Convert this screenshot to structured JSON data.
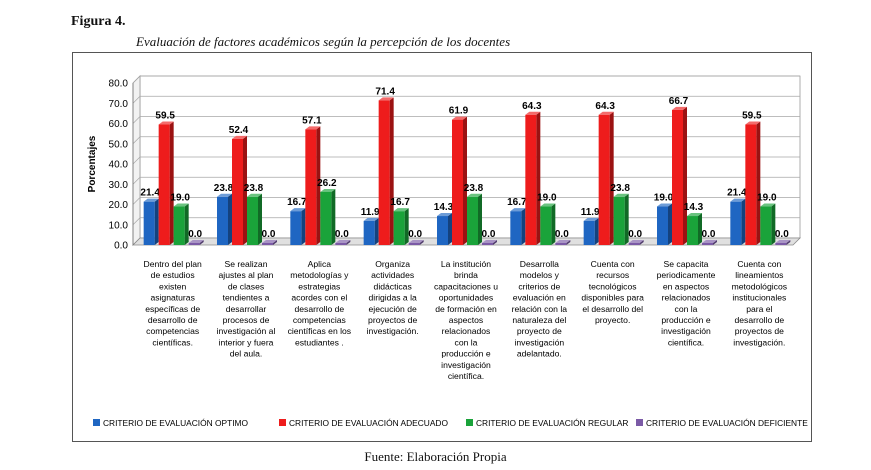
{
  "figure_label": "Figura 4.",
  "figure_title": "Evaluación de factores académicos según la percepción de los docentes",
  "source": "Fuente: Elaboración Propia",
  "chart_data": {
    "type": "bar",
    "ylabel": "Porcentajes",
    "ylim": [
      0,
      80
    ],
    "yticks": [
      "0.0",
      "10.0",
      "20.0",
      "30.0",
      "40.0",
      "50.0",
      "60.0",
      "70.0",
      "80.0"
    ],
    "grid": true,
    "legend_position": "bottom",
    "categories": [
      [
        "Dentro del plan",
        "de estudios",
        "existen",
        "asignaturas",
        "específicas de",
        "desarrollo de",
        "competencias",
        "científicas."
      ],
      [
        "Se realizan",
        "ajustes al plan",
        "de clases",
        "tendientes a",
        "desarrollar",
        "procesos de",
        "investigación al",
        "interior y fuera",
        "del aula."
      ],
      [
        "Aplica",
        "metodologías y",
        "estrategias",
        "acordes con el",
        "desarrollo de",
        "competencias",
        "científicas en los",
        "estudiantes ."
      ],
      [
        "Organiza",
        "actividades",
        "didácticas",
        "dirigidas a la",
        "ejecución de",
        "proyectos de",
        "investigación."
      ],
      [
        "La institución",
        "brinda",
        "capacitaciones u",
        "oportunidades",
        "de formación en",
        "aspectos",
        "relacionados",
        "con la",
        "producción e",
        "investigación",
        "científica."
      ],
      [
        "Desarrolla",
        "modelos y",
        "criterios de",
        "evaluación en",
        "relación con la",
        "naturaleza del",
        "proyecto de",
        "investigación",
        "adelantado."
      ],
      [
        "Cuenta con",
        "recursos",
        "tecnológicos",
        "disponibles para",
        "el desarrollo del",
        "proyecto."
      ],
      [
        "Se capacita",
        "periodicamente",
        "en aspectos",
        "relacionados",
        "con la",
        "producción e",
        "investigación",
        "científica."
      ],
      [
        "Cuenta con",
        "lineamientos",
        "metodológicos",
        "institucionales",
        "para el",
        "desarrollo de",
        "proyectos de",
        "investigación."
      ]
    ],
    "series": [
      {
        "name": "CRITERIO  DE  EVALUACIÓN OPTIMO",
        "color": "#1f66c2",
        "values": [
          21.4,
          23.8,
          16.7,
          11.9,
          14.3,
          16.7,
          11.9,
          19.0,
          21.4
        ],
        "labels": [
          "21.4",
          "23.8",
          "16.7",
          "11.9",
          "14.3",
          "16.7",
          "11.9",
          "19.0",
          "21.4"
        ]
      },
      {
        "name": "CRITERIO  DE  EVALUACIÓN ADECUADO",
        "color": "#ee1c1c",
        "values": [
          59.5,
          52.4,
          57.1,
          71.4,
          61.9,
          64.3,
          64.3,
          66.7,
          59.5
        ],
        "labels": [
          "59.5",
          "52.4",
          "57.1",
          "71.4",
          "61.9",
          "64.3",
          "64.3",
          "66.7",
          "59.5"
        ]
      },
      {
        "name": "CRITERIO  DE  EVALUACIÓN REGULAR",
        "color": "#1aa33a",
        "values": [
          19.0,
          23.8,
          26.2,
          16.7,
          23.8,
          19.0,
          23.8,
          14.3,
          19.0
        ],
        "labels": [
          "19.0",
          "23.8",
          "26.2",
          "16.7",
          "23.8",
          "19.0",
          "23.8",
          "14.3",
          "19.0"
        ]
      },
      {
        "name": "CRITERIO  DE  EVALUACIÓN DEFICIENTE",
        "color": "#7b5aa6",
        "values": [
          0,
          0,
          0,
          0,
          0,
          0,
          0,
          0,
          0
        ],
        "labels": [
          "0.0",
          "0.0",
          "0.0",
          "0.0",
          "0.0",
          "0.0",
          "0.0",
          "0.0",
          "0.0"
        ]
      }
    ]
  }
}
